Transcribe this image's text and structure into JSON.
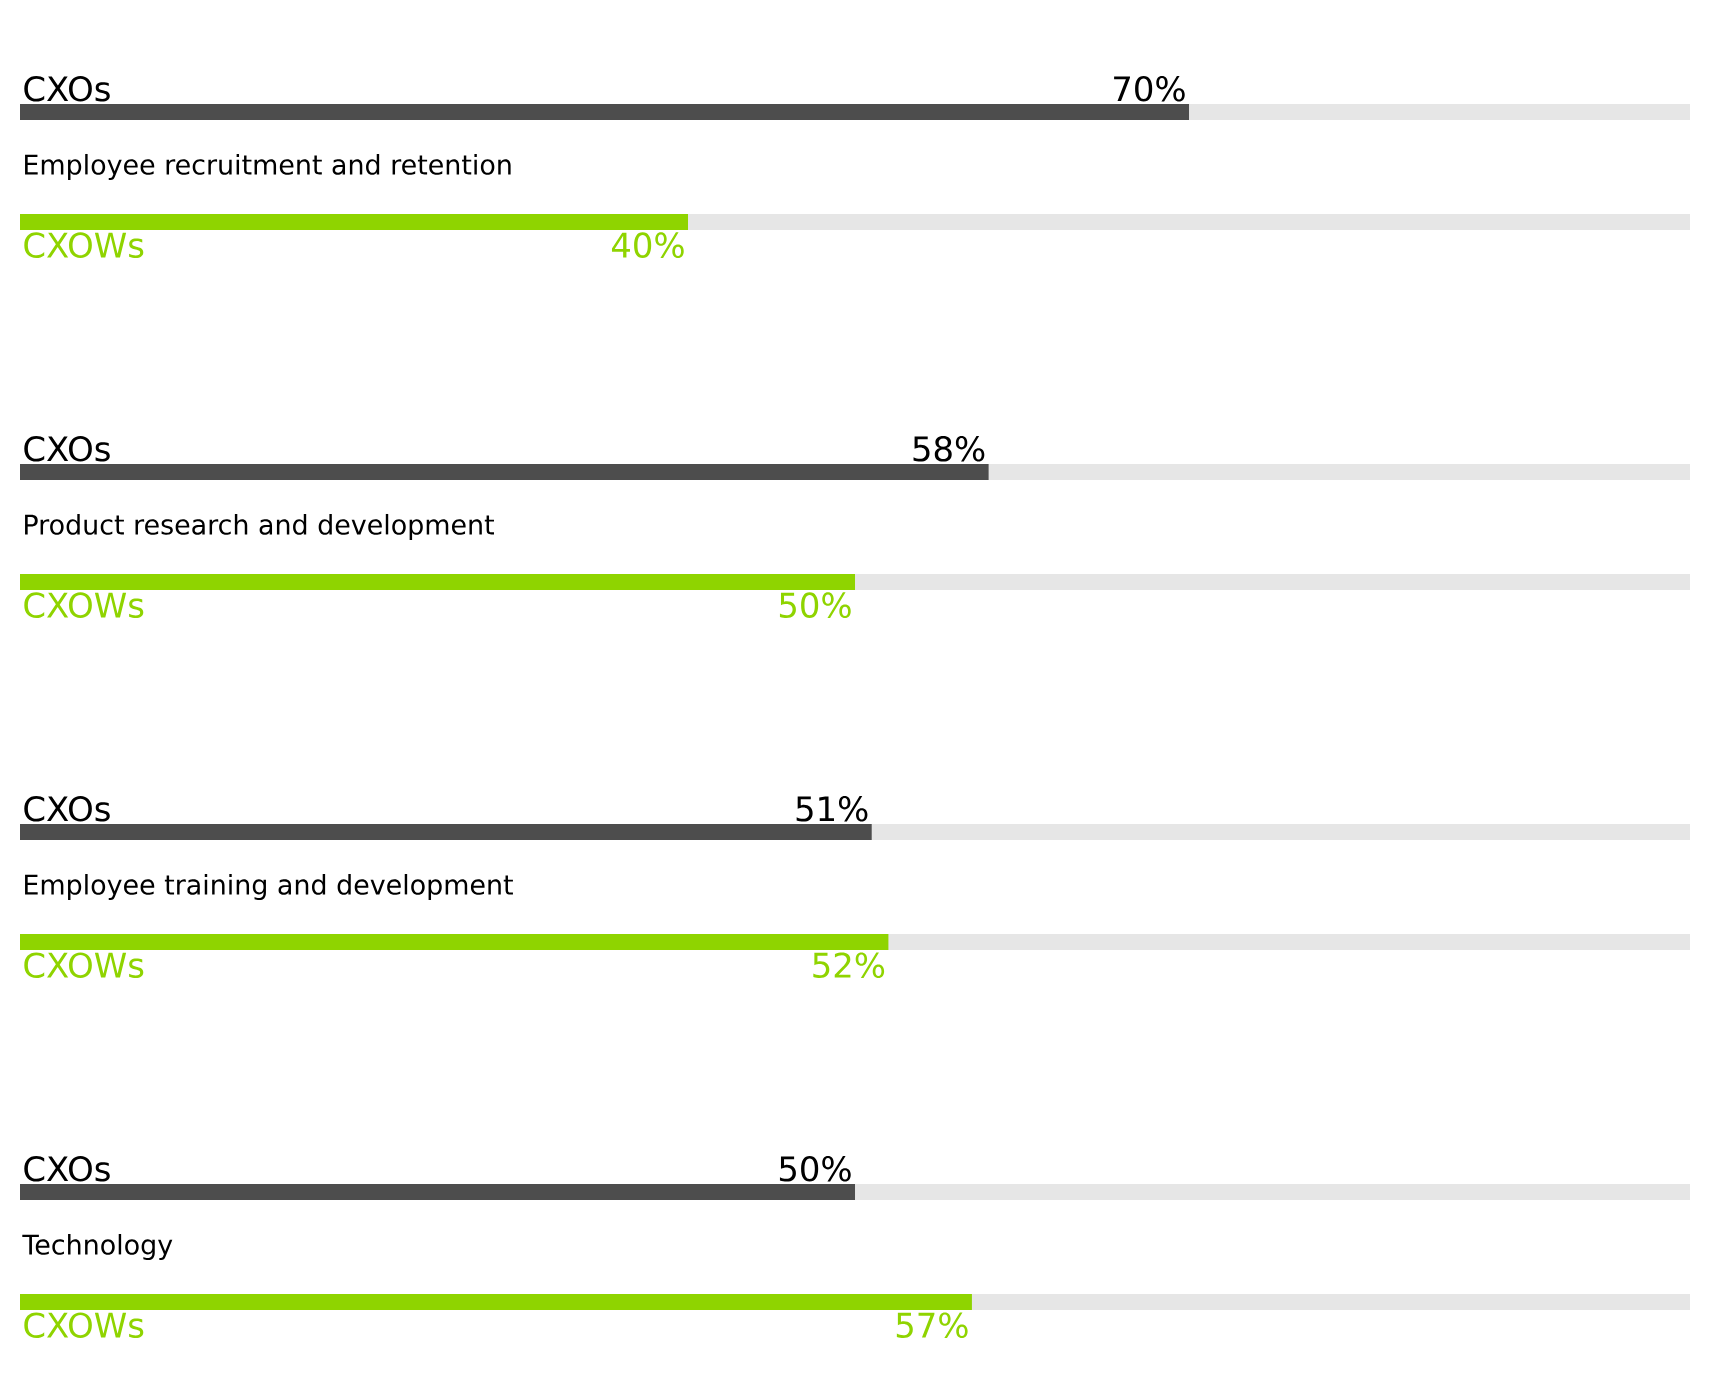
{
  "chart_data": {
    "type": "bar",
    "orientation": "horizontal",
    "categories": [
      "Employee recruitment and retention",
      "Product research and development",
      "Employee training and development",
      "Technology"
    ],
    "series": [
      {
        "name": "CXOs",
        "color": "#4d4d4d",
        "values": [
          70,
          58,
          51,
          50
        ],
        "value_labels": [
          "70%",
          "58%",
          "51%",
          "50%"
        ]
      },
      {
        "name": "CXOWs",
        "color": "#8fd400",
        "values": [
          40,
          50,
          52,
          57
        ],
        "value_labels": [
          "40%",
          "50%",
          "52%",
          "57%"
        ]
      }
    ],
    "xlim": [
      0,
      100
    ]
  }
}
